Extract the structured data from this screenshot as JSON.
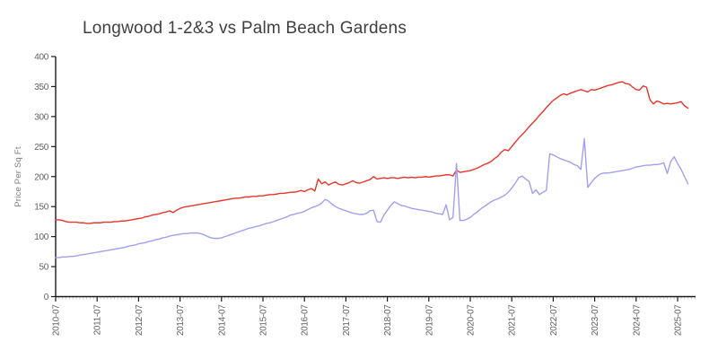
{
  "title": "Longwood 1-2&3 vs Palm Beach Gardens",
  "chart_data": {
    "type": "line",
    "title": "Longwood 1-2&3 vs Palm Beach Gardens",
    "xlabel": "",
    "ylabel": "Price Per Sq Ft",
    "ylim": [
      0,
      400
    ],
    "y_ticks": [
      0,
      50,
      100,
      150,
      200,
      250,
      300,
      350,
      400
    ],
    "grid": "off",
    "legend": "none",
    "x_start": "2010-07",
    "x_interval": "monthly",
    "x_tick_labels": [
      "2010-07",
      "2011-07",
      "2012-07",
      "2013-07",
      "2014-07",
      "2015-07",
      "2016-07",
      "2017-07",
      "2018-07",
      "2019-07",
      "2020-07",
      "2021-07",
      "2022-07",
      "2023-07",
      "2024-07",
      "2025-07"
    ],
    "series": [
      {
        "name": "red",
        "color": "#e8352b",
        "values": [
          128,
          128,
          127,
          125,
          124,
          124,
          124,
          123,
          123,
          122,
          122,
          123,
          123,
          123,
          124,
          124,
          124,
          125,
          125,
          126,
          126,
          127,
          128,
          129,
          130,
          131,
          133,
          134,
          136,
          137,
          138,
          140,
          141,
          143,
          140,
          144,
          147,
          149,
          150,
          151,
          152,
          153,
          154,
          155,
          156,
          157,
          158,
          159,
          160,
          161,
          162,
          163,
          164,
          164,
          165,
          166,
          166,
          167,
          167,
          168,
          168,
          169,
          170,
          170,
          171,
          172,
          172,
          173,
          174,
          174,
          175,
          177,
          175,
          178,
          180,
          176,
          196,
          188,
          191,
          186,
          189,
          191,
          187,
          186,
          188,
          190,
          193,
          190,
          189,
          191,
          193,
          195,
          200,
          196,
          197,
          198,
          197,
          198,
          198,
          197,
          198,
          199,
          198,
          199,
          198,
          199,
          199,
          200,
          199,
          200,
          201,
          201,
          202,
          203,
          203,
          201,
          211,
          207,
          208,
          209,
          210,
          212,
          214,
          217,
          220,
          222,
          225,
          230,
          234,
          241,
          245,
          243,
          250,
          257,
          264,
          270,
          276,
          283,
          289,
          295,
          302,
          308,
          315,
          321,
          327,
          331,
          335,
          338,
          336,
          339,
          341,
          343,
          345,
          343,
          341,
          345,
          344,
          346,
          348,
          350,
          352,
          353,
          355,
          357,
          358,
          355,
          354,
          349,
          345,
          344,
          351,
          349,
          328,
          321,
          326,
          324,
          321,
          322,
          321,
          322,
          323,
          325,
          318,
          314
        ]
      },
      {
        "name": "blue",
        "color": "#a0a0f0",
        "values": [
          65,
          65,
          66,
          66,
          67,
          67,
          68,
          69,
          70,
          71,
          72,
          73,
          74,
          75,
          76,
          77,
          78,
          79,
          80,
          81,
          82,
          84,
          85,
          86,
          88,
          89,
          90,
          92,
          93,
          95,
          96,
          98,
          99,
          101,
          102,
          103,
          104,
          105,
          105,
          106,
          106,
          106,
          105,
          103,
          100,
          98,
          97,
          97,
          98,
          100,
          102,
          104,
          106,
          108,
          110,
          112,
          114,
          115,
          117,
          118,
          120,
          122,
          123,
          125,
          127,
          129,
          131,
          133,
          136,
          137,
          139,
          140,
          142,
          145,
          148,
          150,
          152,
          156,
          162,
          159,
          154,
          150,
          147,
          145,
          143,
          141,
          139,
          138,
          137,
          137,
          139,
          143,
          144,
          125,
          124,
          136,
          144,
          152,
          158,
          155,
          152,
          151,
          149,
          147,
          146,
          145,
          144,
          143,
          142,
          141,
          139,
          138,
          137,
          153,
          128,
          132,
          222,
          127,
          127,
          129,
          132,
          137,
          141,
          146,
          150,
          154,
          158,
          161,
          163,
          166,
          169,
          174,
          181,
          189,
          198,
          201,
          196,
          192,
          172,
          178,
          170,
          174,
          177,
          238,
          236,
          233,
          230,
          228,
          226,
          224,
          220,
          218,
          212,
          263,
          182,
          190,
          197,
          202,
          205,
          206,
          206,
          207,
          208,
          209,
          210,
          211,
          212,
          214,
          216,
          217,
          218,
          219,
          219,
          220,
          220,
          221,
          223,
          205,
          225,
          233,
          222,
          212,
          200,
          188
        ]
      }
    ]
  },
  "colors": {
    "axis": "#1a1a1a",
    "major_tick": "#1a1a1a",
    "minor_tick": "#c9c9c9",
    "x_tick_label": "#5f5f5f",
    "y_tick_label": "#5f5f5f",
    "title": "#3f3f3f",
    "y_axis_title": "#7a7a7a",
    "background": "#ffffff"
  }
}
